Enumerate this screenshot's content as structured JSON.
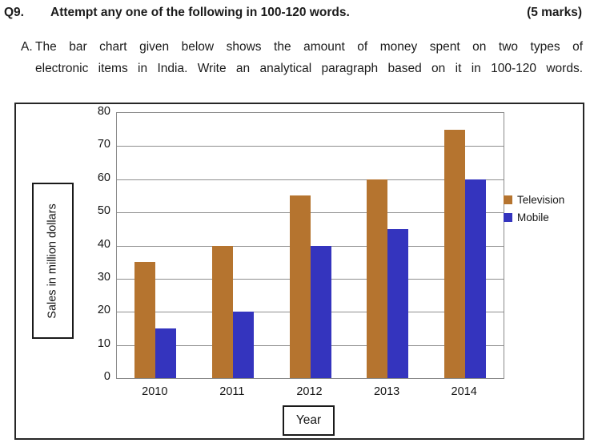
{
  "header": {
    "question_number": "Q9.",
    "question_text": "Attempt any one of the following in 100-120 words.",
    "marks": "(5 marks)"
  },
  "option_a": {
    "label": "A.",
    "line1": "The bar chart given below shows the amount of money spent on two types of",
    "line2": "electronic items in India. Write an analytical paragraph based on it in 100-120 words."
  },
  "chart_data": {
    "type": "bar",
    "title": "",
    "categories": [
      "2010",
      "2011",
      "2012",
      "2013",
      "2014"
    ],
    "series": [
      {
        "name": "Television",
        "color": "#B5742F",
        "values": [
          35,
          40,
          55,
          60,
          75
        ]
      },
      {
        "name": "Mobile",
        "color": "#3434BE",
        "values": [
          15,
          20,
          40,
          45,
          60
        ]
      }
    ],
    "xlabel": "Year",
    "ylabel": "Sales in million dollars",
    "ylim": [
      0,
      80
    ],
    "ytick_step": 10,
    "grid": true,
    "legend_position": "right",
    "gridline_color": "#8f8f8f"
  }
}
